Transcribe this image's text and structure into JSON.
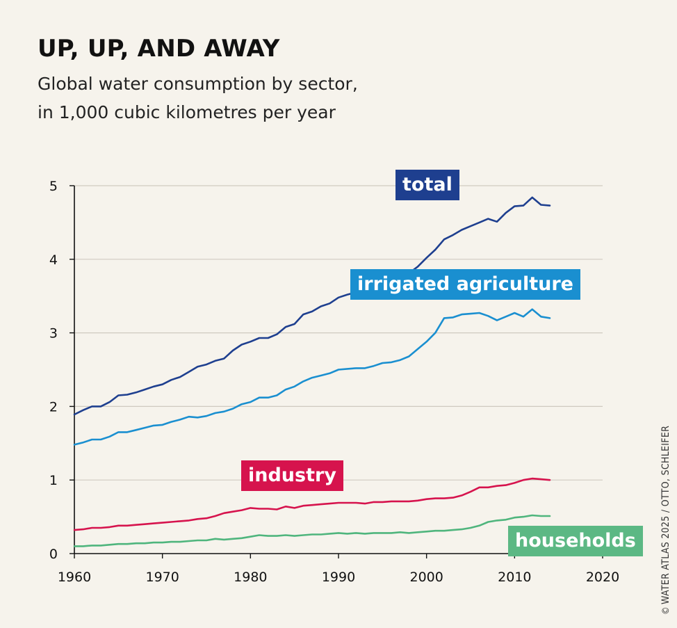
{
  "header": {
    "title": "UP, UP, AND AWAY",
    "subtitle_line1": "Global water consumption by sector,",
    "subtitle_line2": "in 1,000 cubic kilometres per year"
  },
  "credit": {
    "symbol": "©",
    "text": "WATER ATLAS 2025 / OTTO, SCHLEIFER"
  },
  "chart_data": {
    "type": "line",
    "title": "UP, UP, AND AWAY",
    "subtitle": "Global water consumption by sector, in 1,000 cubic kilometres per year",
    "xlabel": "",
    "ylabel": "",
    "xlim": [
      1960,
      2020
    ],
    "ylim": [
      0,
      5
    ],
    "xticks": [
      1960,
      1970,
      1980,
      1990,
      2000,
      2010,
      2020
    ],
    "yticks": [
      0,
      1,
      2,
      3,
      4,
      5
    ],
    "grid": "horizontal",
    "x": [
      1960,
      1961,
      1962,
      1963,
      1964,
      1965,
      1966,
      1967,
      1968,
      1969,
      1970,
      1971,
      1972,
      1973,
      1974,
      1975,
      1976,
      1977,
      1978,
      1979,
      1980,
      1981,
      1982,
      1983,
      1984,
      1985,
      1986,
      1987,
      1988,
      1989,
      1990,
      1991,
      1992,
      1993,
      1994,
      1995,
      1996,
      1997,
      1998,
      1999,
      2000,
      2001,
      2002,
      2003,
      2004,
      2005,
      2006,
      2007,
      2008,
      2009,
      2010,
      2011,
      2012,
      2013,
      2014
    ],
    "series": [
      {
        "name": "total",
        "color": "#1e3f8f",
        "label_bg": "#1e3f8f",
        "values": [
          1.89,
          1.95,
          2.0,
          2.0,
          2.06,
          2.15,
          2.16,
          2.19,
          2.23,
          2.27,
          2.3,
          2.36,
          2.4,
          2.47,
          2.54,
          2.57,
          2.62,
          2.65,
          2.76,
          2.84,
          2.88,
          2.93,
          2.93,
          2.98,
          3.08,
          3.12,
          3.25,
          3.29,
          3.36,
          3.4,
          3.48,
          3.52,
          3.55,
          3.58,
          3.63,
          3.66,
          3.7,
          3.74,
          3.81,
          3.9,
          4.02,
          4.13,
          4.27,
          4.33,
          4.4,
          4.45,
          4.5,
          4.55,
          4.51,
          4.63,
          4.72,
          4.73,
          4.84,
          4.74,
          4.73
        ]
      },
      {
        "name": "irrigated agriculture",
        "color": "#1a8fd0",
        "label_bg": "#1a8fd0",
        "values": [
          1.48,
          1.51,
          1.55,
          1.55,
          1.59,
          1.65,
          1.65,
          1.68,
          1.71,
          1.74,
          1.75,
          1.79,
          1.82,
          1.86,
          1.85,
          1.87,
          1.91,
          1.93,
          1.97,
          2.03,
          2.06,
          2.12,
          2.12,
          2.15,
          2.23,
          2.27,
          2.34,
          2.39,
          2.42,
          2.45,
          2.5,
          2.51,
          2.52,
          2.52,
          2.55,
          2.59,
          2.6,
          2.63,
          2.68,
          2.78,
          2.88,
          3.0,
          3.2,
          3.21,
          3.25,
          3.26,
          3.27,
          3.23,
          3.17,
          3.22,
          3.27,
          3.22,
          3.32,
          3.22,
          3.2
        ]
      },
      {
        "name": "industry",
        "color": "#d6134d",
        "label_bg": "#d6134d",
        "values": [
          0.32,
          0.33,
          0.35,
          0.35,
          0.36,
          0.38,
          0.38,
          0.39,
          0.4,
          0.41,
          0.42,
          0.43,
          0.44,
          0.45,
          0.47,
          0.48,
          0.51,
          0.55,
          0.57,
          0.59,
          0.62,
          0.61,
          0.61,
          0.6,
          0.64,
          0.62,
          0.65,
          0.66,
          0.67,
          0.68,
          0.69,
          0.69,
          0.69,
          0.68,
          0.7,
          0.7,
          0.71,
          0.71,
          0.71,
          0.72,
          0.74,
          0.75,
          0.75,
          0.76,
          0.79,
          0.84,
          0.9,
          0.9,
          0.92,
          0.93,
          0.96,
          1.0,
          1.02,
          1.01,
          1.0
        ]
      },
      {
        "name": "households",
        "color": "#4fb57d",
        "label_bg": "#5cb884",
        "values": [
          0.1,
          0.1,
          0.11,
          0.11,
          0.12,
          0.13,
          0.13,
          0.14,
          0.14,
          0.15,
          0.15,
          0.16,
          0.16,
          0.17,
          0.18,
          0.18,
          0.2,
          0.19,
          0.2,
          0.21,
          0.23,
          0.25,
          0.24,
          0.24,
          0.25,
          0.24,
          0.25,
          0.26,
          0.26,
          0.27,
          0.28,
          0.27,
          0.28,
          0.27,
          0.28,
          0.28,
          0.28,
          0.29,
          0.28,
          0.29,
          0.3,
          0.31,
          0.31,
          0.32,
          0.33,
          0.35,
          0.38,
          0.43,
          0.45,
          0.46,
          0.49,
          0.5,
          0.52,
          0.51,
          0.51
        ]
      }
    ]
  }
}
